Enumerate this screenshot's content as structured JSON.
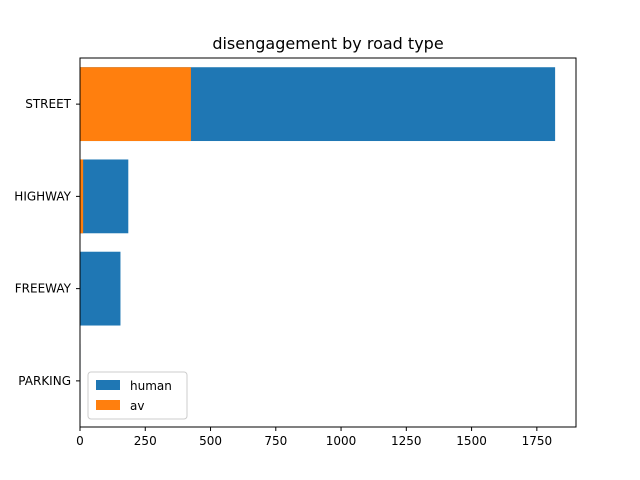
{
  "chart_data": {
    "type": "bar",
    "orientation": "horizontal",
    "stacked": false,
    "title": "disengagement by road type",
    "xlabel": "",
    "ylabel": "",
    "categories": [
      "STREET",
      "HIGHWAY",
      "FREEWAY",
      "PARKING"
    ],
    "series": [
      {
        "name": "human",
        "color": "#1f77b4",
        "values": [
          1820,
          185,
          155,
          2
        ]
      },
      {
        "name": "av",
        "color": "#ff7f0e",
        "values": [
          425,
          12,
          0,
          0
        ]
      }
    ],
    "xlim": [
      0,
      1900
    ],
    "xticks": [
      0,
      250,
      500,
      750,
      1000,
      1250,
      1500,
      1750
    ],
    "grid": false,
    "legend_position": "lower-left"
  }
}
